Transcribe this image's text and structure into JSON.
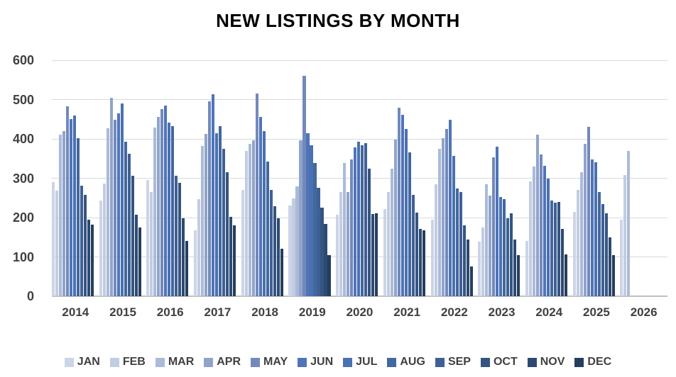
{
  "title": "NEW LISTINGS BY MONTH",
  "chart_data": {
    "type": "bar",
    "title": "NEW LISTINGS BY MONTH",
    "categories": [
      "2014",
      "2015",
      "2016",
      "2017",
      "2018",
      "2019",
      "2020",
      "2021",
      "2022",
      "2023",
      "2024",
      "2025",
      "2026"
    ],
    "ylabel": "",
    "xlabel": "",
    "ylim": [
      0,
      600
    ],
    "yticks": [
      "0",
      "100",
      "200",
      "300",
      "400",
      "500",
      "600"
    ],
    "grid": "horizontal",
    "legend_position": "bottom",
    "series": [
      {
        "name": "JAN",
        "color": "#ccd5e6",
        "values": [
          290,
          243,
          295,
          167,
          270,
          231,
          207,
          222,
          195,
          138,
          140,
          215,
          195
        ]
      },
      {
        "name": "FEB",
        "color": "#c2cde1",
        "values": [
          268,
          287,
          265,
          246,
          369,
          248,
          264,
          264,
          285,
          174,
          291,
          270,
          308
        ]
      },
      {
        "name": "MAR",
        "color": "#abbad8",
        "values": [
          411,
          427,
          428,
          382,
          387,
          279,
          339,
          324,
          374,
          284,
          330,
          315,
          370
        ]
      },
      {
        "name": "APR",
        "color": "#90a4ca",
        "values": [
          420,
          505,
          455,
          413,
          396,
          396,
          264,
          399,
          402,
          255,
          410,
          388,
          null
        ]
      },
      {
        "name": "MAY",
        "color": "#7389bb",
        "values": [
          482,
          448,
          476,
          496,
          516,
          561,
          348,
          479,
          425,
          354,
          360,
          430,
          null
        ]
      },
      {
        "name": "JUN",
        "color": "#4f74ba",
        "values": [
          450,
          465,
          485,
          514,
          456,
          414,
          378,
          462,
          449,
          381,
          332,
          347,
          null
        ]
      },
      {
        "name": "JUL",
        "color": "#4a71b0",
        "values": [
          460,
          490,
          441,
          415,
          420,
          384,
          392,
          425,
          356,
          252,
          300,
          341,
          null
        ]
      },
      {
        "name": "AUG",
        "color": "#43679f",
        "values": [
          401,
          392,
          433,
          433,
          342,
          339,
          384,
          366,
          273,
          246,
          243,
          265,
          null
        ]
      },
      {
        "name": "SEP",
        "color": "#3e6094",
        "values": [
          281,
          362,
          306,
          374,
          270,
          276,
          389,
          258,
          264,
          198,
          238,
          235,
          null
        ]
      },
      {
        "name": "OCT",
        "color": "#355581",
        "values": [
          257,
          306,
          288,
          315,
          228,
          225,
          324,
          213,
          180,
          211,
          240,
          210,
          null
        ]
      },
      {
        "name": "NOV",
        "color": "#2d4a71",
        "values": [
          194,
          208,
          198,
          201,
          198,
          183,
          209,
          171,
          144,
          144,
          171,
          150,
          null
        ]
      },
      {
        "name": "DEC",
        "color": "#243e5f",
        "values": [
          182,
          175,
          141,
          180,
          121,
          105,
          211,
          168,
          75,
          105,
          107,
          105,
          null
        ]
      }
    ]
  }
}
